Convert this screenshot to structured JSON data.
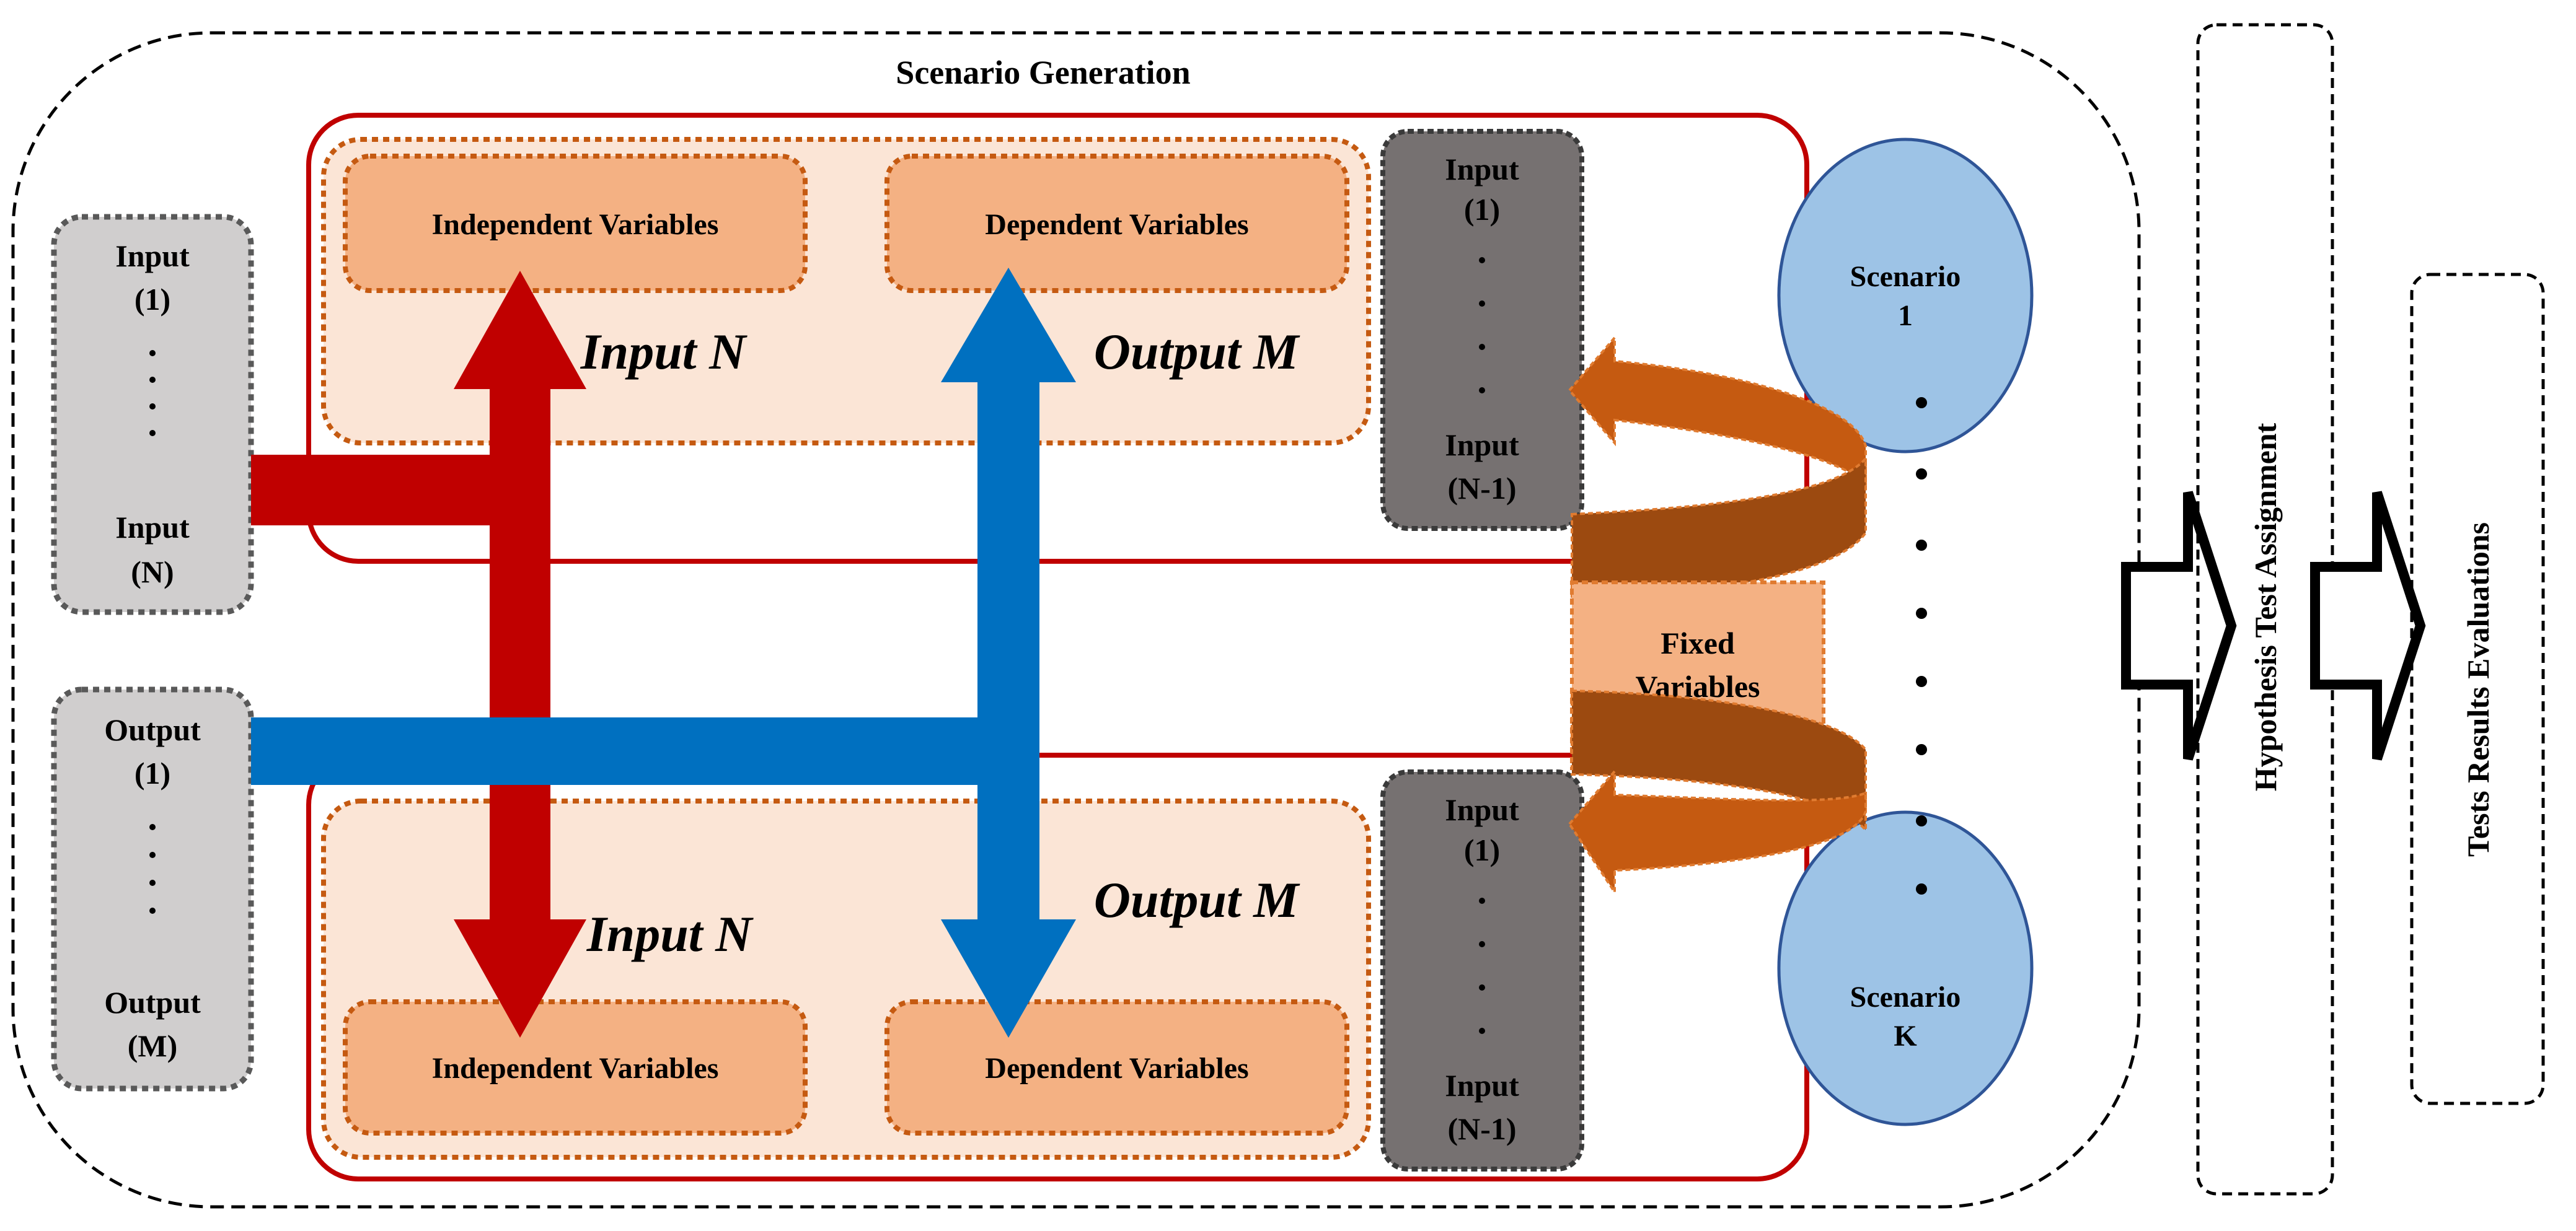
{
  "title": "Scenario Generation",
  "input_list": {
    "first": "Input",
    "first_index": "(1)",
    "last": "Input",
    "last_index": "(N)"
  },
  "output_list": {
    "first": "Output",
    "first_index": "(1)",
    "last": "Output",
    "last_index": "(M)"
  },
  "top_group": {
    "independent": "Independent Variables",
    "dependent": "Dependent Variables",
    "input_arrow": "Input N",
    "output_arrow": "Output M"
  },
  "bottom_group": {
    "independent": "Independent Variables",
    "dependent": "Dependent Variables",
    "input_arrow": "Input N",
    "output_arrow": "Output M"
  },
  "fixed_inputs": {
    "first": "Input",
    "first_index": "(1)",
    "last": "Input",
    "last_index": "(N-1)"
  },
  "fixed_variables": {
    "line1": "Fixed",
    "line2": "Variables"
  },
  "scenarios": {
    "first_label": "Scenario",
    "first_index": "1",
    "last_label": "Scenario",
    "last_index": "K"
  },
  "steps": {
    "hypothesis": "Hypothesis Test Assignment",
    "evaluation": "Tests Results Evaluations"
  },
  "colors": {
    "red": "#c00000",
    "blue": "#0070c0",
    "peach": "#f4b183",
    "light_peach": "#fbe5d6",
    "orange": "#c55a11",
    "dark_orange": "#9c4a10",
    "gray": "#d0cece",
    "dark_gray": "#767171",
    "scenario": "#9dc3e6"
  }
}
